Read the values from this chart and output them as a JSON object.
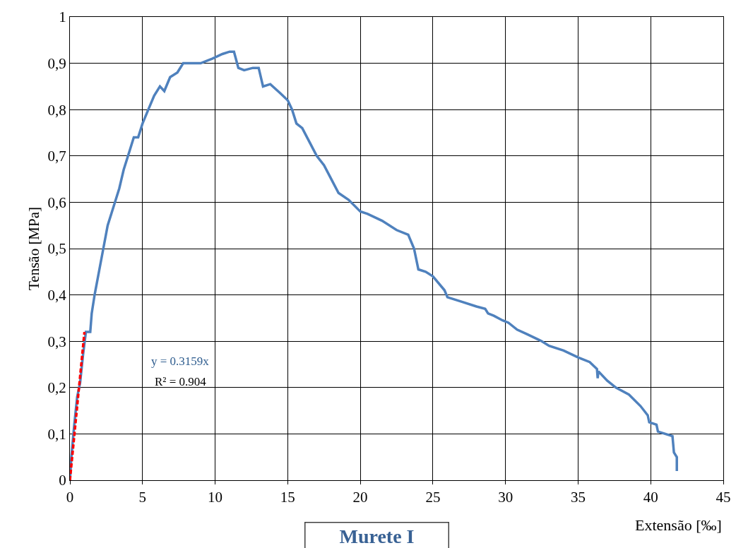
{
  "chart_data": {
    "type": "line",
    "title": "Murete I",
    "xlabel": "Extensão [‰]",
    "ylabel": "Tensão [MPa]",
    "series": [
      {
        "color": "#4f81bd",
        "x": [
          0,
          0.1,
          0.3,
          0.5,
          0.7,
          0.9,
          1.1,
          1.4,
          1.5,
          1.7,
          2.0,
          2.3,
          2.6,
          3.0,
          3.4,
          3.7,
          4.1,
          4.4,
          4.7,
          5.0,
          5.4,
          5.8,
          6.2,
          6.5,
          6.9,
          7.4,
          7.8,
          8.2,
          9.0,
          9.8,
          10.5,
          11.0,
          11.3,
          11.6,
          12.0,
          12.6,
          13.0,
          13.3,
          13.8,
          14.5,
          15.0,
          15.3,
          15.6,
          16.0,
          16.5,
          17.0,
          17.5,
          18.0,
          18.5,
          19.2,
          20.0,
          20.5,
          21.5,
          22.5,
          23.3,
          23.7,
          24.0,
          24.5,
          25.0,
          25.8,
          26.0,
          27.0,
          28.0,
          28.6,
          28.8,
          29.2,
          29.8,
          30.2,
          30.8,
          31.5,
          32.5,
          33.0,
          34.0,
          35.0,
          35.8,
          36.3,
          36.35,
          36.4,
          37.0,
          37.6,
          38.5,
          39.3,
          39.8,
          39.9,
          40.4,
          40.5,
          41.5,
          41.6,
          41.8,
          41.8
        ],
        "values": [
          0,
          0.05,
          0.12,
          0.18,
          0.21,
          0.27,
          0.32,
          0.32,
          0.36,
          0.4,
          0.45,
          0.5,
          0.55,
          0.59,
          0.63,
          0.67,
          0.71,
          0.74,
          0.74,
          0.77,
          0.8,
          0.83,
          0.85,
          0.84,
          0.87,
          0.88,
          0.9,
          0.9,
          0.9,
          0.91,
          0.92,
          0.925,
          0.925,
          0.89,
          0.885,
          0.89,
          0.89,
          0.85,
          0.855,
          0.835,
          0.82,
          0.8,
          0.77,
          0.76,
          0.73,
          0.7,
          0.68,
          0.65,
          0.62,
          0.605,
          0.58,
          0.575,
          0.56,
          0.54,
          0.53,
          0.5,
          0.455,
          0.45,
          0.44,
          0.41,
          0.395,
          0.385,
          0.375,
          0.37,
          0.36,
          0.355,
          0.345,
          0.34,
          0.325,
          0.315,
          0.3,
          0.29,
          0.28,
          0.265,
          0.255,
          0.24,
          0.22,
          0.235,
          0.215,
          0.2,
          0.185,
          0.16,
          0.14,
          0.125,
          0.12,
          0.105,
          0.095,
          0.06,
          0.05,
          0.02
        ]
      },
      {
        "color": "#ff0000",
        "line_style": "dashed",
        "x": [
          0,
          1.0
        ],
        "values": [
          0,
          0.32
        ]
      }
    ],
    "xlim": [
      0,
      45
    ],
    "xticks": [
      0,
      5,
      10,
      15,
      20,
      25,
      30,
      35,
      40,
      45
    ],
    "ylim": [
      0,
      1
    ],
    "yticks": [
      0,
      {
        "value": 0.1,
        "label": "0,1"
      },
      {
        "value": 0.2,
        "label": "0,2"
      },
      {
        "value": 0.3,
        "label": "0,3"
      },
      {
        "value": 0.4,
        "label": "0,4"
      },
      {
        "value": 0.5,
        "label": "0,5"
      },
      {
        "value": 0.6,
        "label": "0,6"
      },
      {
        "value": 0.7,
        "label": "0,7"
      },
      {
        "value": 0.8,
        "label": "0,8"
      },
      {
        "value": 0.9,
        "label": "0,9"
      },
      1
    ],
    "grid": true,
    "annotations": [
      "y = 0.3159x",
      "R² = 0.904"
    ]
  }
}
